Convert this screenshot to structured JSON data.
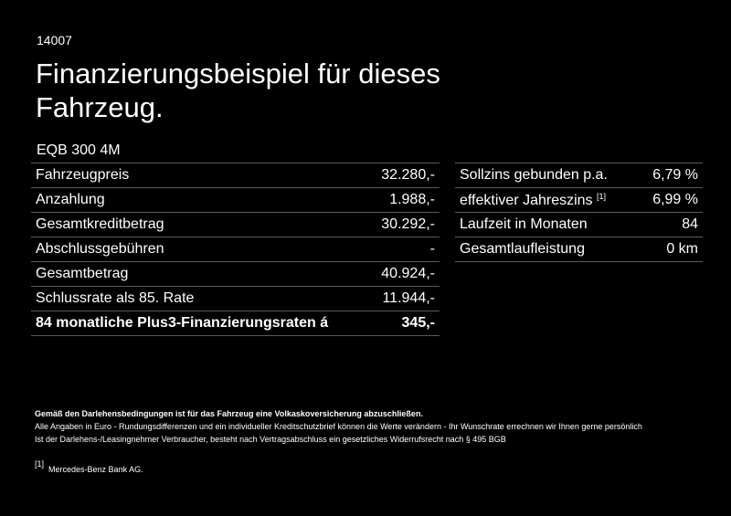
{
  "header": {
    "code": "14007",
    "title": "Finanzierungsbeispiel für dieses Fahrzeug.",
    "model": "EQB 300 4M"
  },
  "left_table": [
    {
      "label": "Fahrzeugpreis",
      "value": "32.280,-"
    },
    {
      "label": "Anzahlung",
      "value": "1.988,-"
    },
    {
      "label": "Gesamtkreditbetrag",
      "value": "30.292,-"
    },
    {
      "label": "Abschlussgebühren",
      "value": "-"
    },
    {
      "label": "Gesamtbetrag",
      "value": "40.924,-"
    },
    {
      "label": "Schlussrate als 85. Rate",
      "value": "11.944,-"
    },
    {
      "label": "84 monatliche Plus3-Finanzierungsraten á",
      "value": "345,-"
    }
  ],
  "right_table": [
    {
      "label": "Sollzins gebunden p.a.",
      "value": "6,79 %"
    },
    {
      "label": "effektiver Jahreszins",
      "sup": "[1]",
      "value": "6,99 %"
    },
    {
      "label": "Laufzeit in Monaten",
      "value": "84"
    },
    {
      "label": "Gesamtlaufleistung",
      "value": "0 km"
    }
  ],
  "footer": {
    "note_bold": "Gemäß den Darlehensbedingungen ist für das Fahrzeug eine Volkaskoversicherung abzuschließen.",
    "line1": "Alle Angaben in Euro - Rundungsdifferenzen und ein individueller Kreditschutzbrief können die Werte verändern - Ihr Wunschrate errechnen wir Ihnen gerne persönlich",
    "line2": "Ist der Darlehens-/Leasingnehmer Verbraucher, besteht nach Vertragsabschluss ein gesetzliches Widerrufsrecht nach § 495 BGB",
    "footnote_marker": "[1]",
    "footnote_text": "Mercedes-Benz Bank AG."
  }
}
